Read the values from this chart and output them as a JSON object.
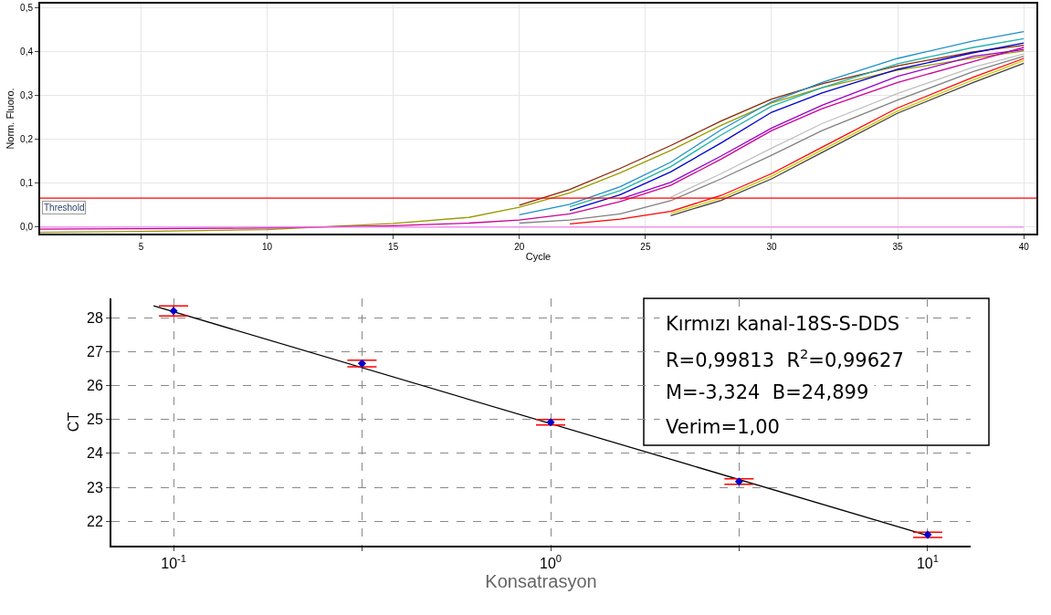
{
  "chart_data": [
    {
      "type": "line",
      "xlabel": "Cycle",
      "ylabel": "Norm. Fluoro.",
      "x": [
        1,
        5,
        10,
        15,
        18,
        20,
        22,
        24,
        26,
        28,
        30,
        32,
        35,
        38,
        40
      ],
      "xlim": [
        1,
        40.5
      ],
      "xticks": [
        5,
        10,
        15,
        20,
        25,
        30,
        35,
        40
      ],
      "ylim": [
        -0.015,
        0.51
      ],
      "yticks": [
        {
          "value": 0,
          "label": "0,0"
        },
        {
          "value": 0.1,
          "label": "0,1"
        },
        {
          "value": 0.2,
          "label": "0,2"
        },
        {
          "value": 0.3,
          "label": "0,3"
        },
        {
          "value": 0.4,
          "label": "0,4"
        },
        {
          "value": 0.5,
          "label": "0,5"
        }
      ],
      "grid": true,
      "marker": "none",
      "line_style": "solid",
      "ref_lines": [
        {
          "axis": "y",
          "value": 0.066,
          "label": "Threshold",
          "color": "#ff0000"
        }
      ],
      "series": [
        {
          "color": "#9a9a00",
          "values": [
            -0.012,
            -0.01,
            -0.006,
            0.008,
            0.022,
            0.045,
            0.078,
            0.124,
            0.175,
            0.232,
            0.283,
            0.318,
            0.358,
            0.386,
            0.402
          ]
        },
        {
          "color": "#8b2500",
          "values": [
            null,
            null,
            null,
            null,
            null,
            0.05,
            0.086,
            0.134,
            0.186,
            0.242,
            0.292,
            0.327,
            0.368,
            0.4,
            0.415
          ]
        },
        {
          "color": "#1e90c8",
          "values": [
            null,
            null,
            null,
            null,
            null,
            0.028,
            0.052,
            0.092,
            0.148,
            0.222,
            0.286,
            0.33,
            0.385,
            0.425,
            0.446
          ]
        },
        {
          "color": "#20b2aa",
          "values": [
            null,
            null,
            null,
            null,
            null,
            null,
            0.046,
            0.083,
            0.138,
            0.21,
            0.276,
            0.318,
            0.373,
            0.41,
            0.43
          ]
        },
        {
          "color": "#0000cc",
          "values": [
            null,
            null,
            null,
            null,
            null,
            null,
            0.038,
            0.074,
            0.126,
            0.192,
            0.262,
            0.306,
            0.36,
            0.398,
            0.42
          ]
        },
        {
          "color": "#cc0099",
          "values": [
            -0.005,
            -0.004,
            -0.002,
            0.003,
            0.009,
            0.016,
            0.03,
            0.058,
            0.095,
            0.155,
            0.22,
            0.27,
            0.33,
            0.378,
            0.41
          ]
        },
        {
          "color": "#9900cc",
          "values": [
            null,
            null,
            null,
            null,
            null,
            null,
            null,
            0.064,
            0.102,
            0.162,
            0.226,
            0.278,
            0.344,
            0.39,
            0.405
          ]
        },
        {
          "color": "#808080",
          "values": [
            null,
            null,
            null,
            null,
            null,
            0.009,
            0.016,
            0.03,
            0.06,
            0.11,
            0.164,
            0.22,
            0.29,
            0.355,
            0.39
          ]
        },
        {
          "color": "#c0c0c0",
          "values": [
            null,
            null,
            null,
            null,
            null,
            null,
            null,
            null,
            0.068,
            0.122,
            0.18,
            0.236,
            0.305,
            0.365,
            0.395
          ]
        },
        {
          "color": "#ff0000",
          "values": [
            null,
            null,
            null,
            null,
            null,
            null,
            0.007,
            0.018,
            0.036,
            0.072,
            0.122,
            0.182,
            0.272,
            0.342,
            0.385
          ]
        },
        {
          "color": "#d4c800",
          "values": [
            null,
            null,
            null,
            null,
            null,
            null,
            null,
            null,
            0.031,
            0.066,
            0.116,
            0.176,
            0.265,
            0.336,
            0.38
          ]
        },
        {
          "color": "#404040",
          "values": [
            null,
            null,
            null,
            null,
            null,
            null,
            null,
            null,
            0.026,
            0.061,
            0.11,
            0.17,
            0.26,
            0.33,
            0.374
          ]
        },
        {
          "color": "#ee82ee",
          "values": [
            0,
            0,
            0,
            0,
            0,
            0,
            0,
            0,
            0,
            0,
            0,
            0,
            0,
            0,
            0
          ]
        }
      ]
    },
    {
      "type": "scatter",
      "xlabel": "Konsatrasyon",
      "ylabel": "CT",
      "x": [
        0.1,
        0.316,
        1,
        3.16,
        10
      ],
      "log": "x",
      "xlim": [
        0.0684,
        13
      ],
      "xticks": [
        {
          "value": 0.1,
          "label": "10$^{-1}$"
        },
        {
          "value": 0.316,
          "label": null
        },
        {
          "value": 1,
          "label": "10$^{0}$"
        },
        {
          "value": 3.16,
          "label": null
        },
        {
          "value": 10,
          "label": "10$^{1}$"
        }
      ],
      "ylim": [
        21.28,
        28.57
      ],
      "yticks": [
        22,
        23,
        24,
        25,
        26,
        27,
        28
      ],
      "grid": true,
      "marker": "diamond",
      "series": [
        {
          "type": "line",
          "marker": "none",
          "color": "#000000",
          "x": [
            0.0885,
            10
          ],
          "values": [
            28.35,
            21.58
          ]
        },
        {
          "color": "#0000cc",
          "values": [
            28.2,
            26.65,
            24.92,
            23.17,
            21.6
          ],
          "errors": [
            0.15,
            0.1,
            0.08,
            0.08,
            0.08
          ]
        }
      ],
      "annotations": [
        "Kırmızı kanal-18S-S-DDS",
        "R=0,99813  R$^{2}$=0,99627",
        "M=-3,324  B=24,899",
        "Verim=1,00"
      ]
    }
  ]
}
